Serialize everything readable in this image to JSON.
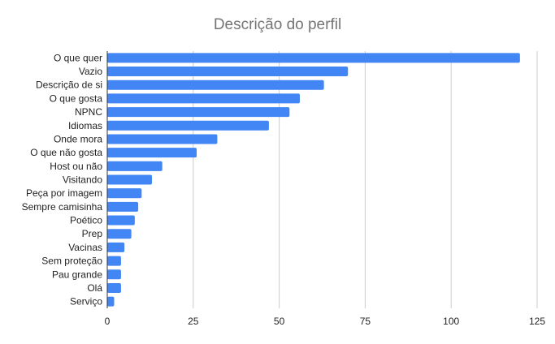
{
  "chart_data": {
    "type": "bar",
    "orientation": "horizontal",
    "title": "Descrição do perfil",
    "xlabel": "",
    "ylabel": "",
    "categories": [
      "O que quer",
      "Vazio",
      "Descrição de si",
      "O que gosta",
      "NPNC",
      "Idiomas",
      "Onde mora",
      "O que não gosta",
      "Host ou não",
      "Visitando",
      "Peça por imagem",
      "Sempre camisinha",
      "Poético",
      "Prep",
      "Vacinas",
      "Sem proteção",
      "Pau grande",
      "Olá",
      "Serviço"
    ],
    "values": [
      120,
      70,
      63,
      56,
      53,
      47,
      32,
      26,
      16,
      13,
      10,
      9,
      8,
      7,
      5,
      4,
      4,
      4,
      2
    ],
    "xlim": [
      0,
      125
    ],
    "xticks": [
      0,
      25,
      50,
      75,
      100,
      125
    ],
    "grid": "vertical",
    "legend": "none",
    "bar_color": "#4285f4",
    "grid_color": "#cccccc",
    "axis_color": "#333333"
  }
}
